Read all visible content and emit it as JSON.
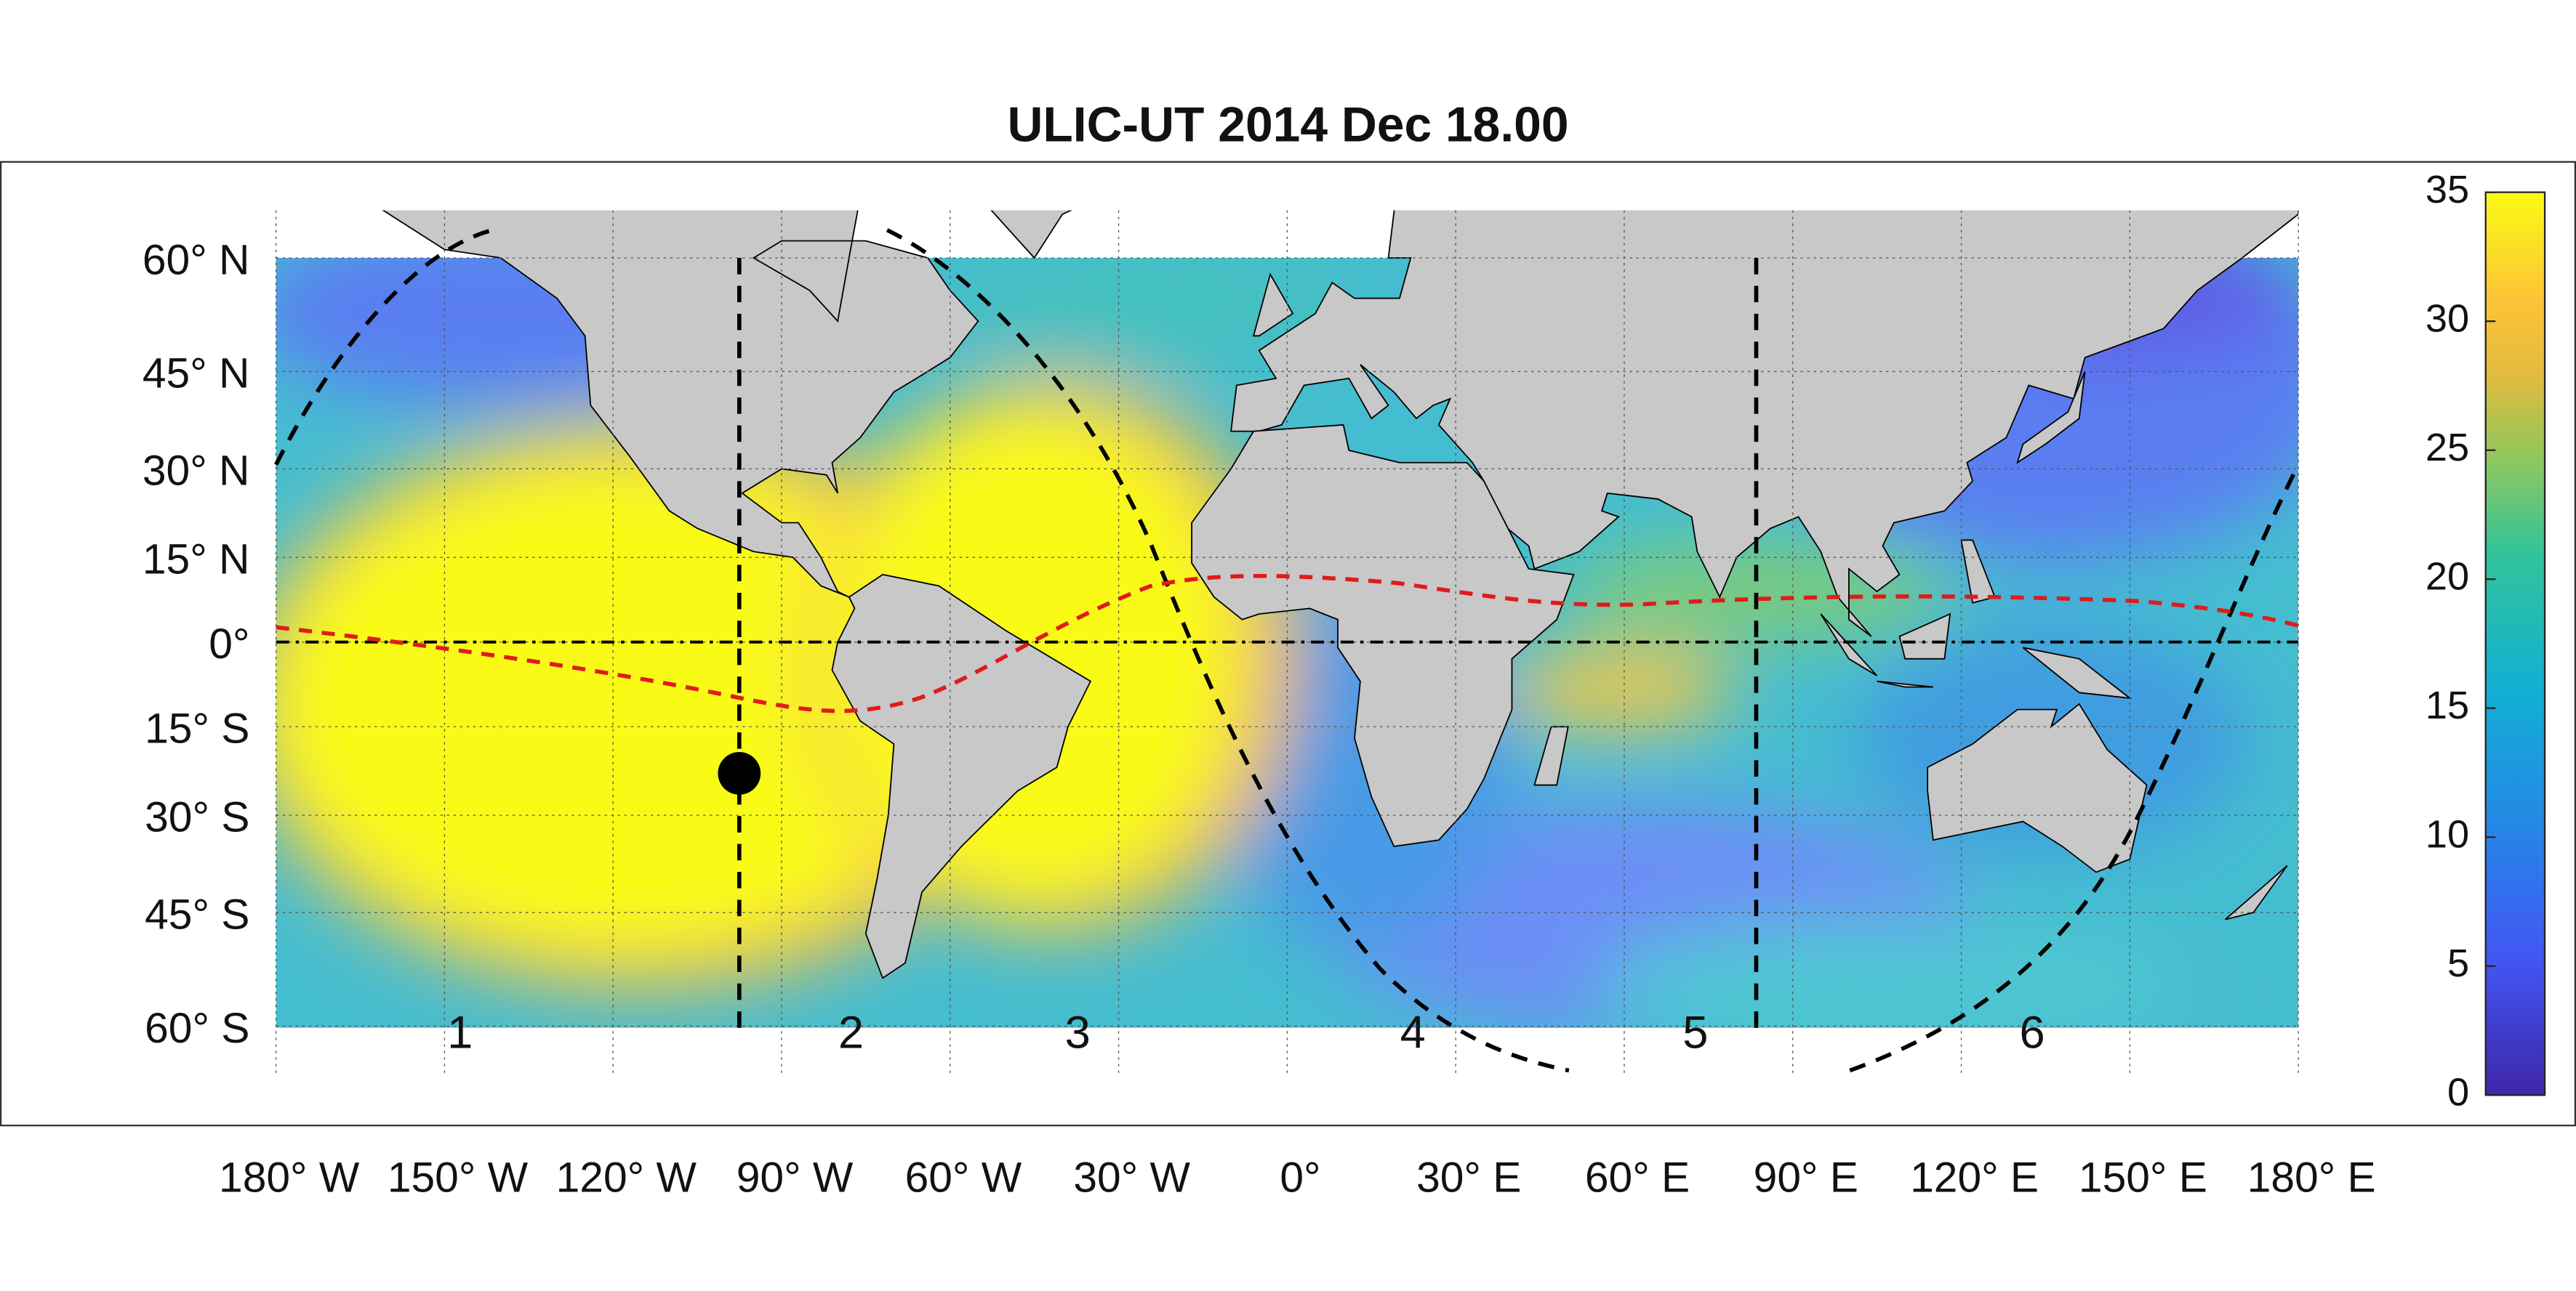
{
  "title": "ULIC-UT 2014 Dec 18.00",
  "latitude_ticks": [
    {
      "value": 60,
      "label": "60° N"
    },
    {
      "value": 45,
      "label": "45° N"
    },
    {
      "value": 30,
      "label": "30° N"
    },
    {
      "value": 15,
      "label": "15° N"
    },
    {
      "value": 0,
      "label": "0°"
    },
    {
      "value": -15,
      "label": "15° S"
    },
    {
      "value": -30,
      "label": "30° S"
    },
    {
      "value": -45,
      "label": "45° S"
    },
    {
      "value": -60,
      "label": "60° S"
    }
  ],
  "longitude_ticks": [
    {
      "value": -180,
      "label": "180° W"
    },
    {
      "value": -150,
      "label": "150° W"
    },
    {
      "value": -120,
      "label": "120° W"
    },
    {
      "value": -90,
      "label": "90° W"
    },
    {
      "value": -60,
      "label": "60° W"
    },
    {
      "value": -30,
      "label": "30° W"
    },
    {
      "value": 0,
      "label": "0°"
    },
    {
      "value": 30,
      "label": "30° E"
    },
    {
      "value": 60,
      "label": "60° E"
    },
    {
      "value": 90,
      "label": "90° E"
    },
    {
      "value": 120,
      "label": "120° E"
    },
    {
      "value": 150,
      "label": "150° E"
    },
    {
      "value": 180,
      "label": "180° E"
    }
  ],
  "colorbar": {
    "lim": [
      0,
      35
    ],
    "ticks": [
      0,
      5,
      10,
      15,
      20,
      25,
      30,
      35
    ]
  },
  "regions": [
    "1",
    "2",
    "3",
    "4",
    "5",
    "6"
  ]
}
